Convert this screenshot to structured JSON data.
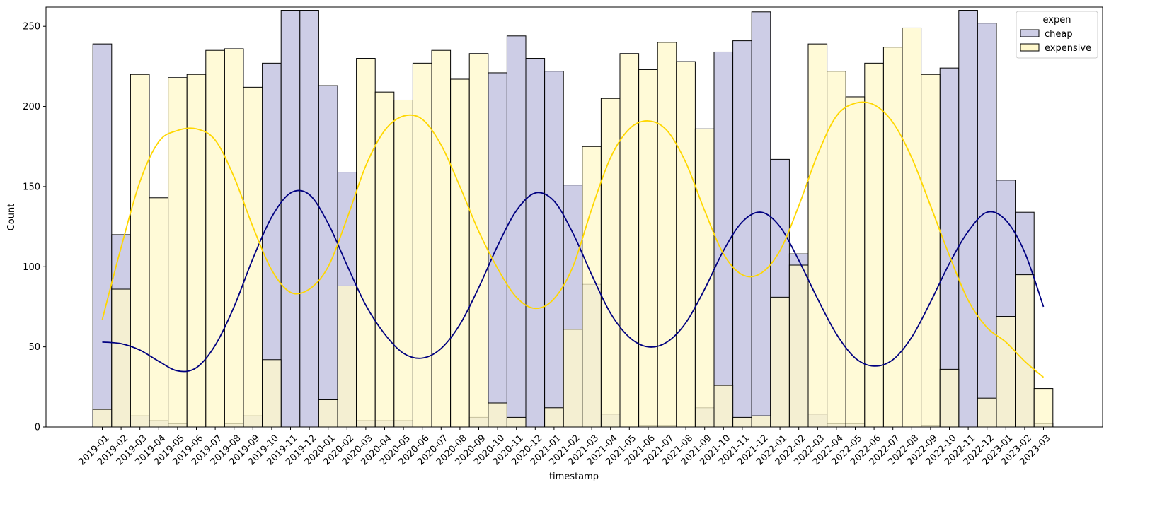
{
  "chart_data": {
    "type": "bar",
    "xlabel": "timestamp",
    "ylabel": "Count",
    "ylim": [
      0,
      262
    ],
    "yticks": [
      0,
      50,
      100,
      150,
      200,
      250
    ],
    "grid": false,
    "categories": [
      "2019-01",
      "2019-02",
      "2019-03",
      "2019-04",
      "2019-05",
      "2019-06",
      "2019-07",
      "2019-08",
      "2019-09",
      "2019-10",
      "2019-11",
      "2019-12",
      "2020-01",
      "2020-02",
      "2020-03",
      "2020-04",
      "2020-05",
      "2020-06",
      "2020-07",
      "2020-08",
      "2020-09",
      "2020-10",
      "2020-11",
      "2020-12",
      "2021-01",
      "2021-02",
      "2021-03",
      "2021-04",
      "2021-05",
      "2021-06",
      "2021-07",
      "2021-08",
      "2021-09",
      "2021-10",
      "2021-11",
      "2021-12",
      "2022-01",
      "2022-02",
      "2022-03",
      "2022-04",
      "2022-05",
      "2022-06",
      "2022-07",
      "2022-08",
      "2022-09",
      "2022-10",
      "2022-11",
      "2022-12",
      "2023-01",
      "2023-02",
      "2023-03"
    ],
    "legend": {
      "title": "expen",
      "placement": "top-right"
    },
    "series": [
      {
        "name": "cheap",
        "fill": "#cdcde6",
        "kde_color": "#000080",
        "values": [
          239,
          120,
          7,
          4,
          2,
          0,
          0,
          2,
          7,
          227,
          260,
          260,
          213,
          159,
          4,
          4,
          4,
          0,
          0,
          0,
          6,
          221,
          244,
          230,
          222,
          151,
          89,
          8,
          0,
          1,
          1,
          0,
          12,
          234,
          241,
          259,
          167,
          108,
          8,
          2,
          2,
          0,
          0,
          0,
          1,
          224,
          260,
          252,
          154,
          134,
          2
        ],
        "kde": [
          53,
          52,
          48,
          41,
          35,
          37,
          51,
          75,
          105,
          131,
          146,
          145,
          127,
          101,
          76,
          58,
          46,
          43,
          49,
          64,
          87,
          113,
          135,
          146,
          141,
          121,
          95,
          71,
          56,
          50,
          53,
          65,
          86,
          110,
          128,
          134,
          125,
          104,
          80,
          58,
          43,
          38,
          42,
          56,
          78,
          102,
          122,
          134,
          129,
          109,
          75
        ]
      },
      {
        "name": "expensive",
        "fill": "#fff8cc",
        "kde_color": "#ffd700",
        "values": [
          11,
          86,
          220,
          143,
          218,
          220,
          235,
          236,
          212,
          42,
          0,
          0,
          17,
          88,
          230,
          209,
          204,
          227,
          235,
          217,
          233,
          15,
          6,
          0,
          12,
          61,
          175,
          205,
          233,
          223,
          240,
          228,
          186,
          26,
          6,
          7,
          81,
          101,
          239,
          222,
          206,
          227,
          237,
          249,
          220,
          36,
          0,
          18,
          69,
          95,
          24
        ],
        "kde": [
          67,
          112,
          153,
          178,
          185,
          186,
          179,
          156,
          125,
          98,
          84,
          86,
          100,
          130,
          163,
          185,
          194,
          192,
          176,
          150,
          122,
          99,
          81,
          74,
          80,
          100,
          136,
          168,
          186,
          191,
          185,
          165,
          135,
          108,
          95,
          96,
          110,
          138,
          170,
          194,
          202,
          201,
          190,
          168,
          138,
          107,
          79,
          62,
          53,
          41,
          31
        ]
      }
    ]
  }
}
